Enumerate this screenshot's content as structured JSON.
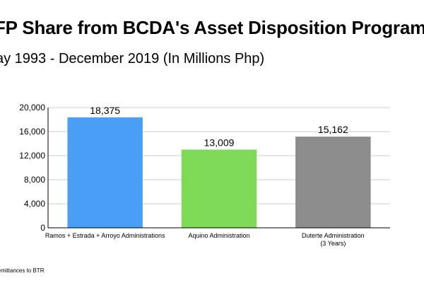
{
  "header": {
    "title": "FP Share from BCDA's Asset Disposition Program",
    "subtitle": "ay 1993 - December 2019 (In Millions Php)"
  },
  "footer": {
    "note": "remittances to BTR"
  },
  "colors": {
    "ramos": "#4a9ff5",
    "aquino": "#7ed957",
    "duterte": "#8c8c8c",
    "axis": "#000000",
    "grid": "#bdbdbd"
  },
  "chart_data": {
    "type": "bar",
    "categories": [
      [
        "Ramos + Estrada + Arroyo Administrations"
      ],
      [
        "Aquino Administration"
      ],
      [
        "Duterte Administration",
        "(3 Years)"
      ]
    ],
    "values": [
      18375,
      13009,
      15162
    ],
    "value_labels": [
      "18,375",
      "13,009",
      "15,162"
    ],
    "bar_colors": [
      "#4a9ff5",
      "#7ed957",
      "#8c8c8c"
    ],
    "yticks": [
      0,
      4000,
      8000,
      12000,
      16000,
      20000
    ],
    "ytick_labels": [
      "0",
      "4,000",
      "8,000",
      "12,000",
      "16,000",
      "20,000"
    ],
    "ylim": [
      0,
      20000
    ],
    "grid": true,
    "legend": "none",
    "title": "FP Share from BCDA's Asset Disposition Program",
    "xlabel": "",
    "ylabel": ""
  }
}
